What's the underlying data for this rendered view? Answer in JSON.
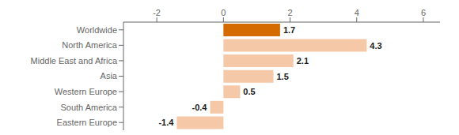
{
  "chart_data": {
    "type": "bar",
    "orientation": "horizontal",
    "categories": [
      "Worldwide",
      "North America",
      "Middle East and Africa",
      "Asia",
      "Western Europe",
      "South America",
      "Eastern Europe"
    ],
    "values": [
      1.7,
      4.3,
      2.1,
      1.5,
      0.5,
      -0.4,
      -1.4
    ],
    "colors": [
      "#d46a00",
      "#f5c8a8",
      "#f5c8a8",
      "#f5c8a8",
      "#f5c8a8",
      "#f5c8a8",
      "#f5c8a8"
    ],
    "xlim": [
      -3.0,
      6.5
    ],
    "xticks": [
      -2,
      0,
      2,
      4,
      6
    ],
    "data_labels": true,
    "grid": false
  }
}
